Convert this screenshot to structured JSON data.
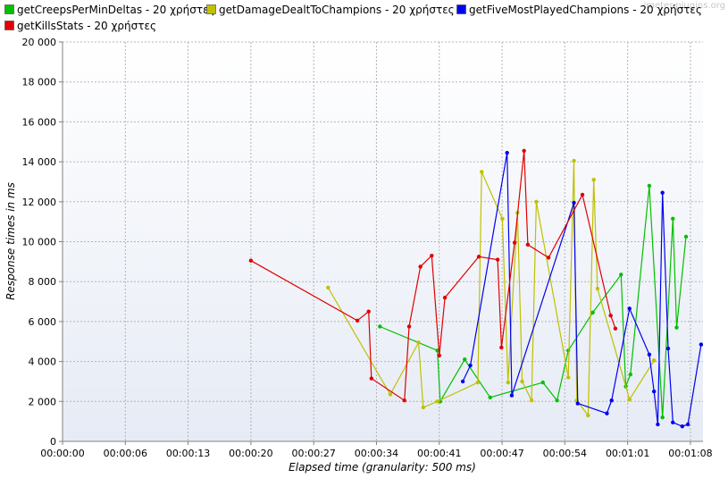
{
  "watermark": "jmeter-plugins.org",
  "chart_data": {
    "type": "line",
    "xlabel": "Elapsed time (granularity: 500 ms)",
    "ylabel": "Response times in ms",
    "xlim": [
      0,
      68
    ],
    "ylim": [
      0,
      20000
    ],
    "x_ticks": [
      0,
      6.67,
      13.33,
      20,
      26.67,
      33.33,
      40,
      46.67,
      53.33,
      60,
      66.67
    ],
    "x_tick_labels": [
      "00:00:00",
      "00:00:06",
      "00:00:13",
      "00:00:20",
      "00:00:27",
      "00:00:34",
      "00:00:41",
      "00:00:47",
      "00:00:54",
      "00:01:01",
      "00:01:08"
    ],
    "y_ticks": [
      0,
      2000,
      4000,
      6000,
      8000,
      10000,
      12000,
      14000,
      16000,
      18000,
      20000
    ],
    "y_tick_labels": [
      "0",
      "2 000",
      "4 000",
      "6 000",
      "8 000",
      "10 000",
      "12 000",
      "14 000",
      "16 000",
      "18 000",
      "20 000"
    ],
    "grid": true,
    "legend_position": "top-left",
    "series": [
      {
        "name": "getCreepsPerMinDeltas - 20 χρήστες",
        "color": "#00c000",
        "points": [
          [
            33.7,
            5750
          ],
          [
            39.8,
            4550
          ],
          [
            40.1,
            2000
          ],
          [
            42.7,
            4100
          ],
          [
            45.4,
            2200
          ],
          [
            51.0,
            2950
          ],
          [
            52.5,
            2050
          ],
          [
            53.7,
            4550
          ],
          [
            56.3,
            6450
          ],
          [
            59.3,
            8350
          ],
          [
            59.8,
            2750
          ],
          [
            60.3,
            3350
          ],
          [
            62.3,
            12800
          ],
          [
            63.7,
            1200
          ],
          [
            64.8,
            11150
          ],
          [
            65.2,
            5700
          ],
          [
            66.2,
            10250
          ]
        ]
      },
      {
        "name": "getDamageDealtToChampions - 20 χρήστες",
        "color": "#c0c000",
        "points": [
          [
            28.2,
            7700
          ],
          [
            34.8,
            2350
          ],
          [
            37.8,
            4950
          ],
          [
            38.3,
            1700
          ],
          [
            39.8,
            2000
          ],
          [
            44.1,
            2950
          ],
          [
            44.5,
            13500
          ],
          [
            46.7,
            11150
          ],
          [
            47.3,
            2950
          ],
          [
            48.3,
            11450
          ],
          [
            48.8,
            3000
          ],
          [
            49.8,
            2050
          ],
          [
            50.3,
            12000
          ],
          [
            53.7,
            3200
          ],
          [
            54.3,
            14050
          ],
          [
            54.6,
            2050
          ],
          [
            55.8,
            1300
          ],
          [
            56.4,
            13100
          ],
          [
            56.8,
            7650
          ],
          [
            60.2,
            2100
          ],
          [
            62.8,
            4050
          ]
        ]
      },
      {
        "name": "getFiveMostPlayedChampions - 20 χρήστες",
        "color": "#0000f0",
        "points": [
          [
            42.5,
            3000
          ],
          [
            43.3,
            3800
          ],
          [
            47.2,
            14450
          ],
          [
            47.7,
            2300
          ],
          [
            54.3,
            11950
          ],
          [
            54.7,
            1900
          ],
          [
            57.8,
            1400
          ],
          [
            58.3,
            2050
          ],
          [
            60.2,
            6650
          ],
          [
            62.3,
            4350
          ],
          [
            62.8,
            2500
          ],
          [
            63.2,
            850
          ],
          [
            63.7,
            12450
          ],
          [
            64.3,
            4650
          ],
          [
            64.8,
            950
          ],
          [
            65.8,
            750
          ],
          [
            66.4,
            850
          ],
          [
            67.8,
            4850
          ]
        ]
      },
      {
        "name": "getKillsStats - 20 χρήστες",
        "color": "#e00000",
        "points": [
          [
            20.0,
            9050
          ],
          [
            31.3,
            6050
          ],
          [
            32.5,
            6500
          ],
          [
            32.8,
            3150
          ],
          [
            36.3,
            2050
          ],
          [
            36.8,
            5750
          ],
          [
            38.0,
            8750
          ],
          [
            39.2,
            9300
          ],
          [
            40.0,
            4300
          ],
          [
            40.6,
            7200
          ],
          [
            44.2,
            9250
          ],
          [
            46.2,
            9100
          ],
          [
            46.6,
            4700
          ],
          [
            48.0,
            9950
          ],
          [
            49.0,
            14550
          ],
          [
            49.4,
            9850
          ],
          [
            51.6,
            9200
          ],
          [
            55.2,
            12350
          ],
          [
            58.2,
            6300
          ],
          [
            58.7,
            5650
          ]
        ]
      }
    ]
  }
}
